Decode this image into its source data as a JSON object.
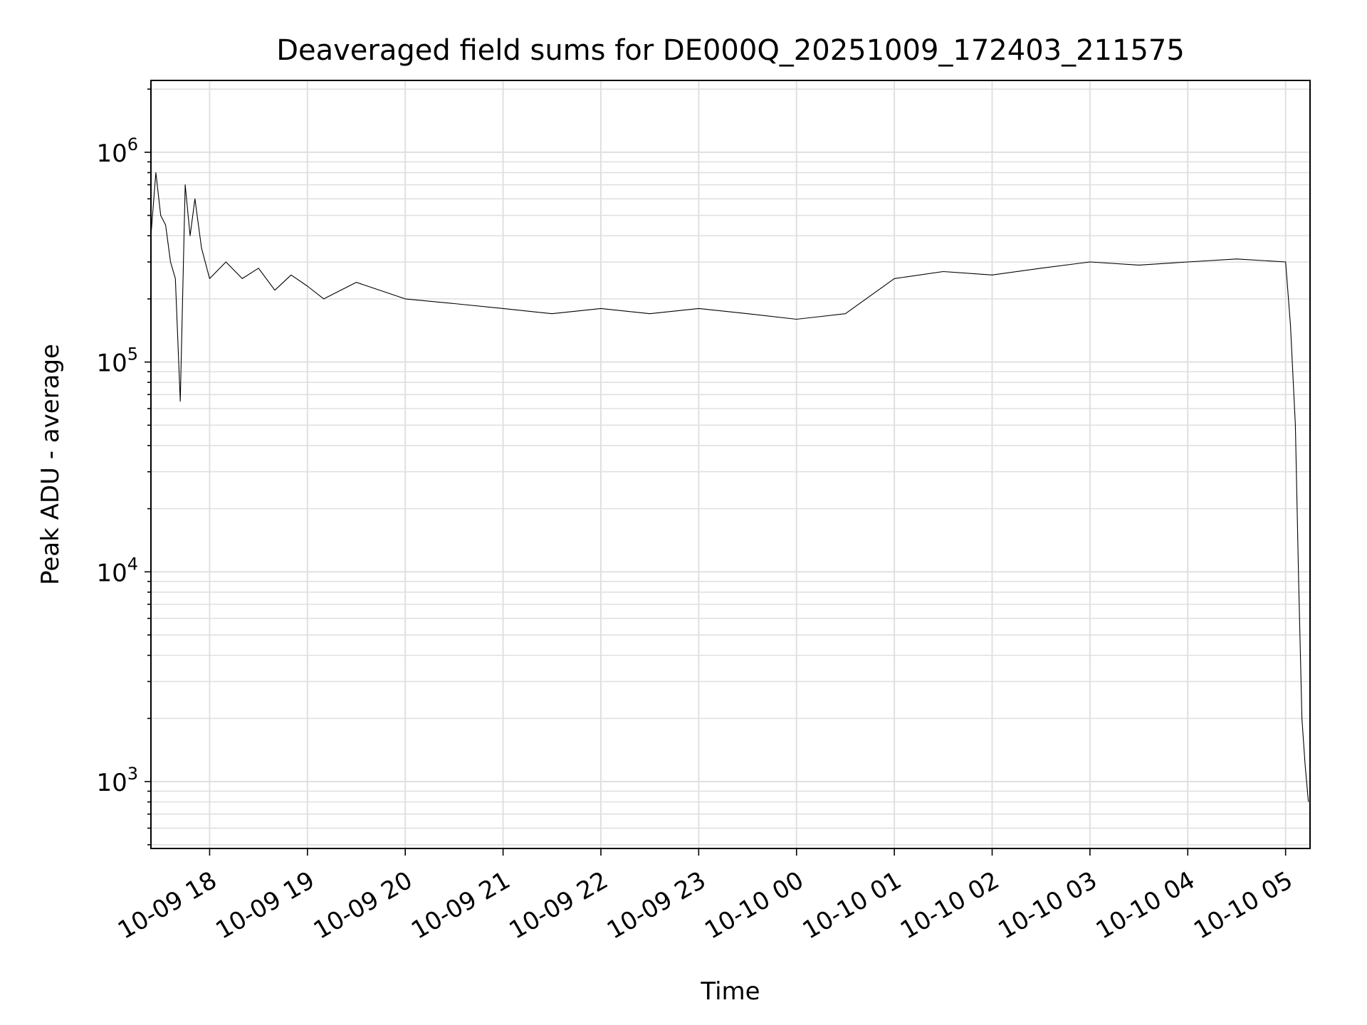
{
  "chart_data": {
    "type": "line",
    "title": "Deaveraged field sums for DE000Q_20251009_172403_211575",
    "xlabel": "Time",
    "ylabel": "Peak ADU - average",
    "y_scale": "log",
    "ylim": [
      480,
      2200000
    ],
    "xlim": [
      "2025-10-09 17:24",
      "2025-10-10 05:15"
    ],
    "grid": true,
    "line_color": "#000000",
    "grid_color": "#e0e0e0",
    "x_ticks": [
      {
        "t": "2025-10-09 18:00",
        "label": "10-09 18"
      },
      {
        "t": "2025-10-09 19:00",
        "label": "10-09 19"
      },
      {
        "t": "2025-10-09 20:00",
        "label": "10-09 20"
      },
      {
        "t": "2025-10-09 21:00",
        "label": "10-09 21"
      },
      {
        "t": "2025-10-09 22:00",
        "label": "10-09 22"
      },
      {
        "t": "2025-10-09 23:00",
        "label": "10-09 23"
      },
      {
        "t": "2025-10-10 00:00",
        "label": "10-10 00"
      },
      {
        "t": "2025-10-10 01:00",
        "label": "10-10 01"
      },
      {
        "t": "2025-10-10 02:00",
        "label": "10-10 02"
      },
      {
        "t": "2025-10-10 03:00",
        "label": "10-10 03"
      },
      {
        "t": "2025-10-10 04:00",
        "label": "10-10 04"
      },
      {
        "t": "2025-10-10 05:00",
        "label": "10-10 05"
      }
    ],
    "y_ticks": [
      {
        "value": 1000,
        "base": "10",
        "exp": "3"
      },
      {
        "value": 10000,
        "base": "10",
        "exp": "4"
      },
      {
        "value": 100000,
        "base": "10",
        "exp": "5"
      },
      {
        "value": 1000000,
        "base": "10",
        "exp": "6"
      }
    ],
    "series": [
      {
        "x": [
          "2025-10-09 17:24",
          "2025-10-09 17:27",
          "2025-10-09 17:30",
          "2025-10-09 17:33",
          "2025-10-09 17:36",
          "2025-10-09 17:39",
          "2025-10-09 17:42",
          "2025-10-09 17:45",
          "2025-10-09 17:48",
          "2025-10-09 17:51",
          "2025-10-09 17:55",
          "2025-10-09 18:00",
          "2025-10-09 18:10",
          "2025-10-09 18:20",
          "2025-10-09 18:30",
          "2025-10-09 18:40",
          "2025-10-09 18:50",
          "2025-10-09 19:00",
          "2025-10-09 19:10",
          "2025-10-09 19:30",
          "2025-10-09 20:00",
          "2025-10-09 20:30",
          "2025-10-09 21:00",
          "2025-10-09 21:30",
          "2025-10-09 22:00",
          "2025-10-09 22:30",
          "2025-10-09 23:00",
          "2025-10-09 23:30",
          "2025-10-10 00:00",
          "2025-10-10 00:30",
          "2025-10-10 01:00",
          "2025-10-10 01:30",
          "2025-10-10 02:00",
          "2025-10-10 02:30",
          "2025-10-10 03:00",
          "2025-10-10 03:30",
          "2025-10-10 04:00",
          "2025-10-10 04:30",
          "2025-10-10 05:00",
          "2025-10-10 05:03",
          "2025-10-10 05:06",
          "2025-10-10 05:08",
          "2025-10-10 05:10",
          "2025-10-10 05:12",
          "2025-10-10 05:14"
        ],
        "y": [
          400000,
          800000,
          500000,
          450000,
          300000,
          250000,
          65000,
          700000,
          400000,
          600000,
          350000,
          250000,
          300000,
          250000,
          280000,
          220000,
          260000,
          230000,
          200000,
          240000,
          200000,
          190000,
          180000,
          170000,
          180000,
          170000,
          180000,
          170000,
          160000,
          170000,
          250000,
          270000,
          260000,
          280000,
          300000,
          290000,
          300000,
          310000,
          300000,
          150000,
          50000,
          9000,
          2000,
          1200,
          800
        ]
      }
    ]
  }
}
